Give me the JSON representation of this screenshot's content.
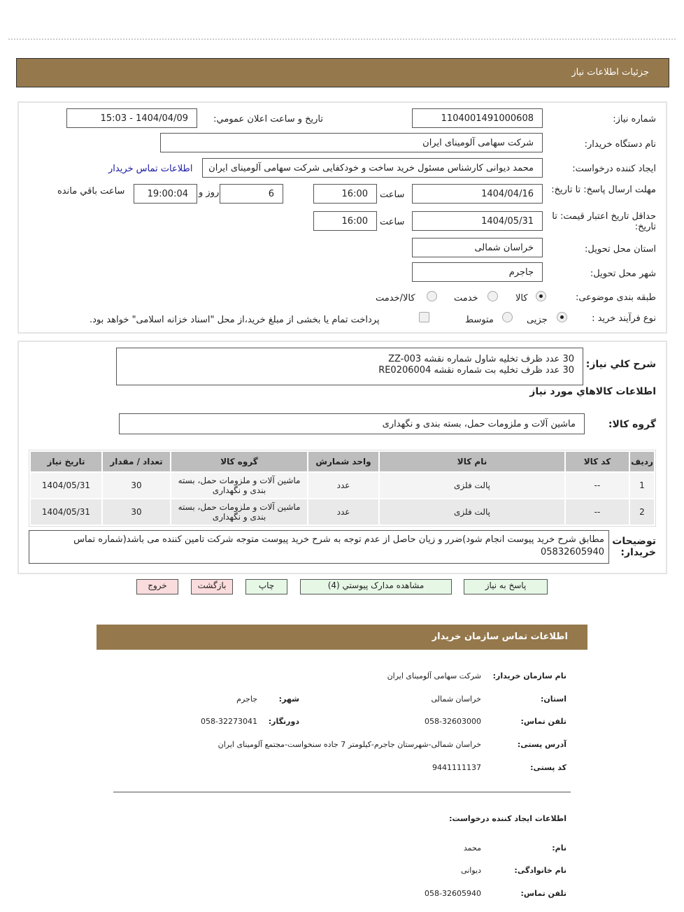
{
  "header": {
    "title": "جزئیات اطلاعات نیاز"
  },
  "form": {
    "need_number_label": "شماره نیاز:",
    "need_number": "1104001491000608",
    "announce_label": "تاريخ و ساعت اعلان عمومي:",
    "announce_value": "1404/04/09 - 15:03",
    "buyer_org_label": "نام دستگاه خریدار:",
    "buyer_org": "شرکت سهامی آلومینای ایران",
    "creator_label": "ایجاد کننده درخواست:",
    "creator": "محمد دیوانی کارشناس مسئول خرید ساخت و خودکفایی شرکت سهامی آلومینای ایران",
    "contact_link": "اطلاعات تماس خریدار",
    "deadline_label": "مهلت ارسال پاسخ: تا تاریخ:",
    "deadline_date": "1404/04/16",
    "time_label": "ساعت",
    "deadline_time": "16:00",
    "days": "6",
    "days_label": "روز و",
    "remaining": "19:00:04",
    "remaining_label": "ساعت باقي مانده",
    "validity_label": "حداقل تاریخ اعتبار قیمت: تا تاریخ:",
    "validity_date": "1404/05/31",
    "validity_time": "16:00",
    "province_label": "استان محل تحویل:",
    "province": "خراسان شمالی",
    "city_label": "شهر محل تحویل:",
    "city": "جاجرم",
    "category_label": "طبقه بندی موضوعی:",
    "category_options": [
      "کالا",
      "خدمت",
      "کالا/خدمت"
    ],
    "category_selected": "کالا",
    "process_label": "نوع فرآیند خرید :",
    "process_options": [
      "جزیی",
      "متوسط"
    ],
    "process_selected": "جزیی",
    "treasury_note": "پرداخت تمام یا بخشی از مبلغ خرید،از محل \"اسناد خزانه اسلامی\" خواهد بود."
  },
  "summary": {
    "label": "شرح كلي نياز:",
    "lines": [
      "30 عدد ظرف تخلیه شاول شماره نقشه ZZ-003",
      "30 عدد ظرف تخلیه بت شماره نقشه RE0206004"
    ]
  },
  "goods": {
    "title": "اطلاعات كالاهاي مورد نياز",
    "group_label": "گروه کالا:",
    "group": "ماشین آلات و ملزومات حمل، بسته بندی و نگهداری",
    "columns": [
      "ردیف",
      "کد کالا",
      "نام کالا",
      "واحد شمارش",
      "گروه کالا",
      "تعداد / مقدار",
      "تاریخ نیاز"
    ],
    "rows": [
      [
        "1",
        "--",
        "پالت فلزی",
        "عدد",
        "ماشین آلات و ملزومات حمل، بسته بندی و نگهداری",
        "30",
        "1404/05/31"
      ],
      [
        "2",
        "--",
        "پالت فلزی",
        "عدد",
        "ماشین آلات و ملزومات حمل، بسته بندی و نگهداری",
        "30",
        "1404/05/31"
      ]
    ]
  },
  "notes": {
    "label": "توضیحات خریدار:",
    "text": "مطابق شرح خرید پیوست انجام شود)ضرر و زیان حاصل از عدم توجه به شرح خرید پیوست متوجه شرکت تامین کننده می باشد(شماره تماس 05832605940"
  },
  "buttons": {
    "reply": "پاسخ به نیاز",
    "attachments": "مشاهده مدارک پیوستي (4)",
    "print": "چاپ",
    "back": "بازگشت",
    "exit": "خروج"
  },
  "contact": {
    "title": "اطلاعات تماس سازمان خریدار",
    "org_label": "نام سازمان خریدار:",
    "org": "شرکت سهامی آلومینای ایران",
    "province_label": "استان:",
    "province": "خراسان شمالی",
    "city_label": "شهر:",
    "city": "جاجرم",
    "phone_label": "تلفن تماس:",
    "phone": "058-32603000",
    "fax_label": "دورنگار:",
    "fax": "058-32273041",
    "address_label": "آدرس پستی:",
    "address": "خراسان شمالی-شهرستان جاجرم-کیلومتر 7 جاده سنخواست-مجتمع آلومینای ایران",
    "postal_label": "کد پستی:",
    "postal": "9441111137",
    "creator_title": "اطلاعات ایجاد کننده درخواست:",
    "name_label": "نام:",
    "name": "محمد",
    "family_label": "نام خانوادگی:",
    "family": "دیوانی",
    "cphone_label": "تلفن تماس:",
    "cphone": "058-32605940"
  }
}
